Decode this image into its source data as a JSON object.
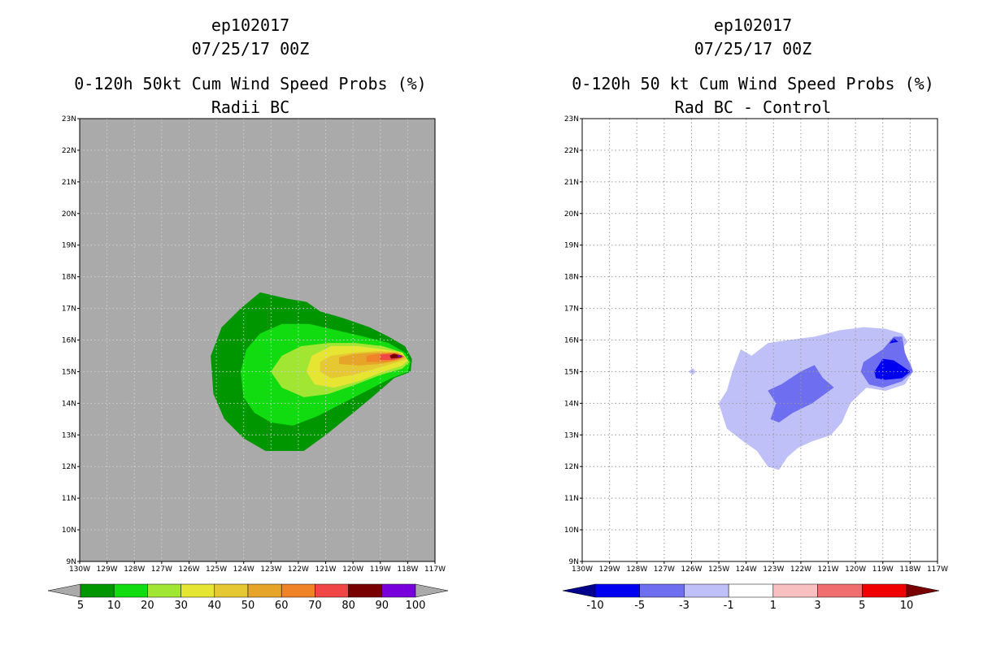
{
  "chart_data": [
    {
      "type": "heatmap",
      "storm_id": "ep102017",
      "datetime": "07/25/17 00Z",
      "title": "0-120h 50kt Cum Wind Speed Probs (%)",
      "subtitle": "Radii BC",
      "lon_range": [
        -130,
        -117
      ],
      "lat_range": [
        9,
        23
      ],
      "x_ticks": [
        "130W",
        "129W",
        "128W",
        "127W",
        "126W",
        "125W",
        "124W",
        "123W",
        "122W",
        "121W",
        "120W",
        "119W",
        "118W",
        "117W"
      ],
      "y_ticks": [
        "9N",
        "10N",
        "11N",
        "12N",
        "13N",
        "14N",
        "15N",
        "16N",
        "17N",
        "18N",
        "19N",
        "20N",
        "21N",
        "22N",
        "23N"
      ],
      "gridlines": true,
      "background": "#aaaaaa",
      "contour_levels": [
        5,
        10,
        20,
        30,
        40,
        50,
        60,
        70,
        80,
        90,
        100
      ],
      "colorbar": {
        "labels": [
          "5",
          "10",
          "20",
          "30",
          "40",
          "50",
          "60",
          "70",
          "80",
          "90",
          "100"
        ],
        "colors": [
          "#aaaaaa",
          "#009600",
          "#10dc10",
          "#a0e632",
          "#e6e632",
          "#e6c832",
          "#e6a528",
          "#f08228",
          "#f04646",
          "#780000",
          "#7800dc",
          "#aaaaaa"
        ]
      },
      "regions": [
        {
          "level": 5,
          "color": "#009600",
          "points": [
            [
              -125.2,
              15.5
            ],
            [
              -125.1,
              14.3
            ],
            [
              -124.7,
              13.5
            ],
            [
              -124.0,
              12.9
            ],
            [
              -123.2,
              12.5
            ],
            [
              -121.8,
              12.5
            ],
            [
              -121.0,
              13.0
            ],
            [
              -120.0,
              13.7
            ],
            [
              -119.3,
              14.2
            ],
            [
              -118.5,
              14.8
            ],
            [
              -117.9,
              15.0
            ],
            [
              -117.85,
              15.4
            ],
            [
              -118.1,
              15.8
            ],
            [
              -118.7,
              16.1
            ],
            [
              -119.4,
              16.4
            ],
            [
              -120.4,
              16.7
            ],
            [
              -121.2,
              16.9
            ],
            [
              -121.7,
              17.2
            ],
            [
              -122.4,
              17.3
            ],
            [
              -123.4,
              17.5
            ],
            [
              -124.1,
              17.0
            ],
            [
              -124.8,
              16.4
            ]
          ]
        },
        {
          "level": 10,
          "color": "#10dc10",
          "points": [
            [
              -124.1,
              15.0
            ],
            [
              -124.0,
              14.2
            ],
            [
              -123.6,
              13.7
            ],
            [
              -123.0,
              13.4
            ],
            [
              -122.2,
              13.3
            ],
            [
              -121.3,
              13.6
            ],
            [
              -120.4,
              14.0
            ],
            [
              -119.5,
              14.4
            ],
            [
              -118.6,
              14.8
            ],
            [
              -118.0,
              15.0
            ],
            [
              -117.9,
              15.3
            ],
            [
              -118.1,
              15.6
            ],
            [
              -118.7,
              15.9
            ],
            [
              -119.6,
              16.1
            ],
            [
              -120.6,
              16.3
            ],
            [
              -121.6,
              16.5
            ],
            [
              -122.6,
              16.5
            ],
            [
              -123.4,
              16.2
            ],
            [
              -123.9,
              15.7
            ]
          ]
        },
        {
          "level": 20,
          "color": "#a0e632",
          "points": [
            [
              -123.0,
              15.0
            ],
            [
              -122.6,
              14.5
            ],
            [
              -121.8,
              14.2
            ],
            [
              -120.9,
              14.3
            ],
            [
              -119.9,
              14.6
            ],
            [
              -119.0,
              14.9
            ],
            [
              -118.2,
              15.1
            ],
            [
              -117.95,
              15.3
            ],
            [
              -118.2,
              15.6
            ],
            [
              -118.9,
              15.8
            ],
            [
              -119.9,
              15.9
            ],
            [
              -120.9,
              15.9
            ],
            [
              -121.9,
              15.8
            ],
            [
              -122.6,
              15.5
            ]
          ]
        },
        {
          "level": 30,
          "color": "#e6e632",
          "points": [
            [
              -121.7,
              15.0
            ],
            [
              -121.4,
              14.6
            ],
            [
              -120.7,
              14.5
            ],
            [
              -119.8,
              14.7
            ],
            [
              -118.9,
              15.0
            ],
            [
              -118.2,
              15.2
            ],
            [
              -118.0,
              15.35
            ],
            [
              -118.2,
              15.6
            ],
            [
              -118.9,
              15.7
            ],
            [
              -119.8,
              15.8
            ],
            [
              -120.8,
              15.8
            ],
            [
              -121.5,
              15.5
            ]
          ]
        },
        {
          "level": 40,
          "color": "#e6c832",
          "points": [
            [
              -121.2,
              15.0
            ],
            [
              -120.8,
              14.8
            ],
            [
              -120.0,
              14.9
            ],
            [
              -119.2,
              15.1
            ],
            [
              -118.4,
              15.3
            ],
            [
              -118.05,
              15.4
            ],
            [
              -118.3,
              15.6
            ],
            [
              -119.0,
              15.65
            ],
            [
              -119.9,
              15.6
            ],
            [
              -120.8,
              15.5
            ],
            [
              -121.2,
              15.3
            ]
          ]
        },
        {
          "level": 50,
          "color": "#e6a528",
          "points": [
            [
              -120.5,
              15.25
            ],
            [
              -119.8,
              15.2
            ],
            [
              -119.0,
              15.25
            ],
            [
              -118.4,
              15.35
            ],
            [
              -118.1,
              15.45
            ],
            [
              -118.4,
              15.6
            ],
            [
              -119.2,
              15.6
            ],
            [
              -120.0,
              15.55
            ],
            [
              -120.5,
              15.45
            ]
          ]
        },
        {
          "level": 60,
          "color": "#f08228",
          "points": [
            [
              -119.5,
              15.32
            ],
            [
              -118.8,
              15.32
            ],
            [
              -118.3,
              15.4
            ],
            [
              -118.12,
              15.48
            ],
            [
              -118.4,
              15.58
            ],
            [
              -119.0,
              15.57
            ],
            [
              -119.5,
              15.5
            ]
          ]
        },
        {
          "level": 70,
          "color": "#f04646",
          "points": [
            [
              -119.0,
              15.38
            ],
            [
              -118.5,
              15.38
            ],
            [
              -118.17,
              15.47
            ],
            [
              -118.5,
              15.57
            ],
            [
              -119.0,
              15.53
            ]
          ]
        },
        {
          "level": 80,
          "color": "#780000",
          "points": [
            [
              -118.6,
              15.42
            ],
            [
              -118.25,
              15.45
            ],
            [
              -118.2,
              15.5
            ],
            [
              -118.5,
              15.56
            ],
            [
              -118.65,
              15.5
            ]
          ]
        },
        {
          "level": 90,
          "color": "#7800dc",
          "points": [
            [
              -118.35,
              15.46
            ],
            [
              -118.22,
              15.48
            ],
            [
              -118.35,
              15.53
            ]
          ]
        }
      ]
    },
    {
      "type": "heatmap",
      "storm_id": "ep102017",
      "datetime": "07/25/17 00Z",
      "title": "0-120h 50 kt Cum Wind Speed Probs (%)",
      "subtitle": "Rad BC - Control",
      "lon_range": [
        -130,
        -117
      ],
      "lat_range": [
        9,
        23
      ],
      "x_ticks": [
        "130W",
        "129W",
        "128W",
        "127W",
        "126W",
        "125W",
        "124W",
        "123W",
        "122W",
        "121W",
        "120W",
        "119W",
        "118W",
        "117W"
      ],
      "y_ticks": [
        "9N",
        "10N",
        "11N",
        "12N",
        "13N",
        "14N",
        "15N",
        "16N",
        "17N",
        "18N",
        "19N",
        "20N",
        "21N",
        "22N",
        "23N"
      ],
      "gridlines": true,
      "background": "#ffffff",
      "contour_levels": [
        -10,
        -5,
        -3,
        -1,
        1,
        3,
        5,
        10
      ],
      "colorbar": {
        "labels": [
          "-10",
          "-5",
          "-3",
          "-1",
          "1",
          "3",
          "5",
          "10"
        ],
        "colors": [
          "#00008c",
          "#0000f0",
          "#6e6ef0",
          "#c0c0f8",
          "#ffffff",
          "#f8c0c0",
          "#f06e6e",
          "#f00000",
          "#780000"
        ]
      },
      "regions": [
        {
          "level": -1,
          "color": "#c0c0f8",
          "points": [
            [
              -125.0,
              14.0
            ],
            [
              -124.7,
              14.4
            ],
            [
              -124.5,
              15.0
            ],
            [
              -124.2,
              15.7
            ],
            [
              -123.8,
              15.5
            ],
            [
              -123.2,
              15.9
            ],
            [
              -122.4,
              16.0
            ],
            [
              -121.5,
              16.1
            ],
            [
              -120.6,
              16.3
            ],
            [
              -119.7,
              16.4
            ],
            [
              -118.9,
              16.35
            ],
            [
              -118.3,
              16.2
            ],
            [
              -118.1,
              15.95
            ],
            [
              -118.4,
              15.6
            ],
            [
              -118.0,
              15.3
            ],
            [
              -117.9,
              15.0
            ],
            [
              -118.2,
              14.6
            ],
            [
              -118.9,
              14.4
            ],
            [
              -119.6,
              14.5
            ],
            [
              -120.2,
              14.0
            ],
            [
              -120.5,
              13.4
            ],
            [
              -120.9,
              13.0
            ],
            [
              -121.6,
              12.8
            ],
            [
              -122.1,
              12.6
            ],
            [
              -122.5,
              12.3
            ],
            [
              -122.8,
              11.9
            ],
            [
              -123.2,
              12.0
            ],
            [
              -123.6,
              12.5
            ],
            [
              -124.1,
              12.8
            ],
            [
              -124.7,
              13.2
            ]
          ]
        },
        {
          "level": -1,
          "color": "#c0c0f8",
          "points": [
            [
              -126.1,
              15.0
            ],
            [
              -125.95,
              14.9
            ],
            [
              -125.85,
              15.0
            ],
            [
              -125.95,
              15.1
            ]
          ]
        },
        {
          "level": -3,
          "color": "#6e6ef0",
          "points": [
            [
              -123.2,
              14.4
            ],
            [
              -122.7,
              14.6
            ],
            [
              -122.0,
              15.0
            ],
            [
              -121.5,
              15.2
            ],
            [
              -121.2,
              14.8
            ],
            [
              -120.8,
              14.5
            ],
            [
              -121.6,
              14.0
            ],
            [
              -122.3,
              13.7
            ],
            [
              -122.8,
              13.4
            ],
            [
              -123.1,
              13.5
            ],
            [
              -122.9,
              14.0
            ]
          ]
        },
        {
          "level": -3,
          "color": "#6e6ef0",
          "points": [
            [
              -119.7,
              15.3
            ],
            [
              -119.0,
              15.7
            ],
            [
              -118.6,
              16.1
            ],
            [
              -118.3,
              16.1
            ],
            [
              -118.2,
              15.6
            ],
            [
              -117.9,
              15.0
            ],
            [
              -118.3,
              14.7
            ],
            [
              -119.0,
              14.5
            ],
            [
              -119.5,
              14.6
            ],
            [
              -119.8,
              15.0
            ]
          ]
        },
        {
          "level": -5,
          "color": "#0000f0",
          "points": [
            [
              -119.3,
              15.0
            ],
            [
              -119.0,
              15.4
            ],
            [
              -118.6,
              15.35
            ],
            [
              -118.0,
              15.0
            ],
            [
              -118.3,
              14.8
            ],
            [
              -118.9,
              14.75
            ],
            [
              -119.25,
              14.8
            ]
          ]
        },
        {
          "level": -5,
          "color": "#0000f0",
          "points": [
            [
              -118.75,
              15.9
            ],
            [
              -118.6,
              16.05
            ],
            [
              -118.45,
              15.95
            ]
          ]
        }
      ]
    }
  ]
}
